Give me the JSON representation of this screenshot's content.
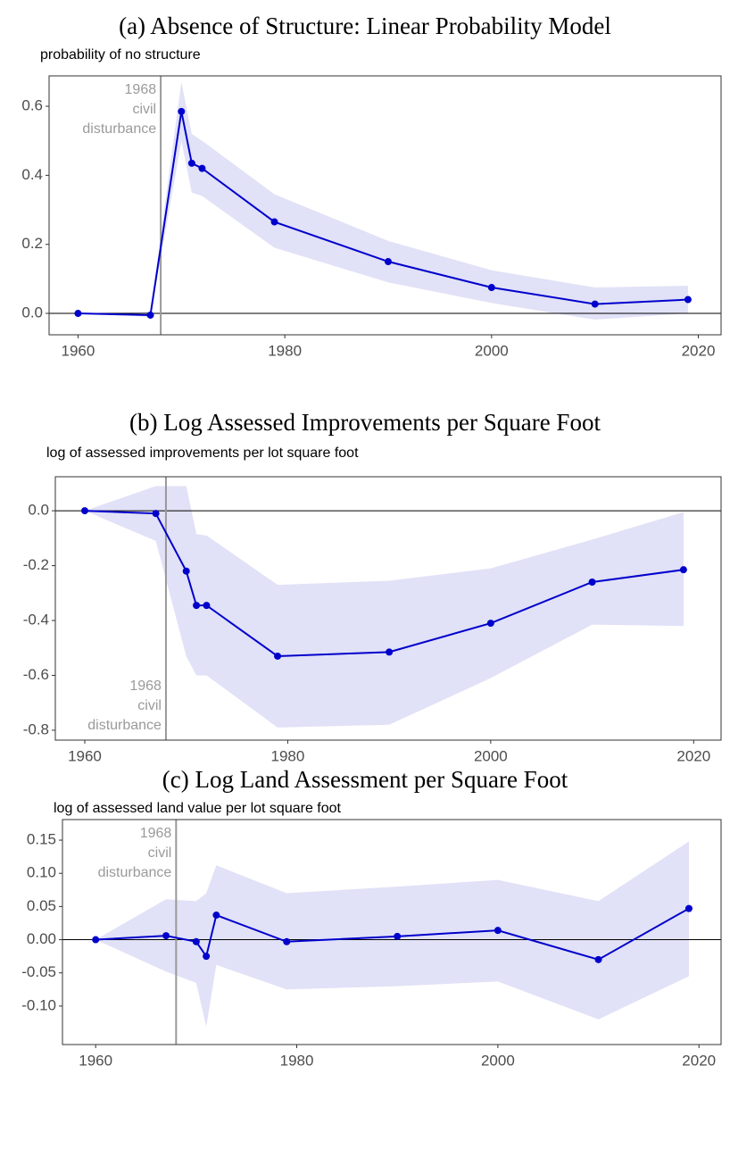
{
  "chart_data": [
    {
      "type": "line",
      "title": "(a) Absence of Structure: Linear Probability Model",
      "y_label": "probability of no structure",
      "x": [
        1960,
        1967,
        1970,
        1971,
        1972,
        1979,
        1990,
        2000,
        2010,
        2019
      ],
      "series": [
        {
          "color": "#0000cc",
          "values": [
            0,
            -0.005,
            0.585,
            0.435,
            0.42,
            0.265,
            0.15,
            0.075,
            0.027,
            0.04
          ],
          "ci_lower": [
            0,
            -0.01,
            0.5,
            0.35,
            0.34,
            0.19,
            0.09,
            0.03,
            -0.018,
            0.0
          ],
          "ci_upper": [
            0,
            0.005,
            0.67,
            0.52,
            0.5,
            0.345,
            0.21,
            0.125,
            0.075,
            0.08
          ],
          "band_color": "#e1e1f7"
        }
      ],
      "xlim": [
        1957.2,
        2022.2
      ],
      "xticks": [
        1960,
        1980,
        2000,
        2020
      ],
      "ylim": [
        -0.062,
        0.688
      ],
      "yticks": [
        {
          "value": 0,
          "label": "0.0"
        },
        0.2,
        0.4,
        0.6
      ],
      "vline": 1968,
      "hline": 0,
      "annotation": [
        "1968",
        "civil",
        "disturbance"
      ]
    },
    {
      "type": "line",
      "title": "(b) Log Assessed Improvements per Square Foot",
      "y_label": "log of assessed improvements per lot square foot",
      "x": [
        1960,
        1967,
        1970,
        1971,
        1972,
        1979,
        1990,
        2000,
        2010,
        2019
      ],
      "series": [
        {
          "color": "#0000cc",
          "values": [
            0,
            -0.01,
            -0.22,
            -0.345,
            -0.345,
            -0.53,
            -0.515,
            -0.41,
            -0.26,
            -0.215
          ],
          "ci_lower": [
            0,
            -0.11,
            -0.53,
            -0.6,
            -0.6,
            -0.79,
            -0.78,
            -0.61,
            -0.415,
            -0.42
          ],
          "ci_upper": [
            0,
            0.09,
            0.09,
            -0.085,
            -0.09,
            -0.27,
            -0.255,
            -0.21,
            -0.105,
            -0.005
          ],
          "band_color": "#e1e1f7"
        }
      ],
      "xlim": [
        1957.1,
        2022.7
      ],
      "xticks": [
        1960,
        1980,
        2000,
        2020
      ],
      "ylim": [
        -0.836,
        0.124
      ],
      "yticks": [
        -0.8,
        -0.6,
        -0.4,
        -0.2,
        {
          "value": 0,
          "label": "0.0"
        }
      ],
      "vline": 1968,
      "hline": 0,
      "annotation": [
        "1968",
        "civil",
        "disturbance"
      ]
    },
    {
      "type": "line",
      "title": "(c) Log Land Assessment per Square Foot",
      "y_label": "log of assessed land value per lot square foot",
      "x": [
        1960,
        1967,
        1970,
        1971,
        1972,
        1979,
        1990,
        2000,
        2010,
        2019
      ],
      "series": [
        {
          "color": "#0000cc",
          "values": [
            0,
            0.006,
            -0.003,
            -0.025,
            0.037,
            -0.003,
            0.005,
            0.014,
            -0.03,
            0.047
          ],
          "ci_lower": [
            0,
            -0.048,
            -0.065,
            -0.131,
            -0.038,
            -0.075,
            -0.07,
            -0.063,
            -0.12,
            -0.055
          ],
          "ci_upper": [
            0,
            0.061,
            0.058,
            0.07,
            0.112,
            0.07,
            0.08,
            0.09,
            0.058,
            0.148
          ],
          "band_color": "#e1e1f7"
        }
      ],
      "xlim": [
        1956.7,
        2022.2
      ],
      "xticks": [
        1960,
        1980,
        2000,
        2020
      ],
      "ylim": [
        -0.158,
        0.181
      ],
      "yticks": [
        {
          "value": -0.1,
          "label": "-0.10"
        },
        -0.05,
        {
          "value": 0,
          "label": "0.00"
        },
        0.05,
        {
          "value": 0.1,
          "label": "0.10"
        },
        0.15
      ],
      "vline": 1968,
      "hline": 0,
      "annotation": [
        "1968",
        "civil",
        "disturbance"
      ]
    }
  ]
}
